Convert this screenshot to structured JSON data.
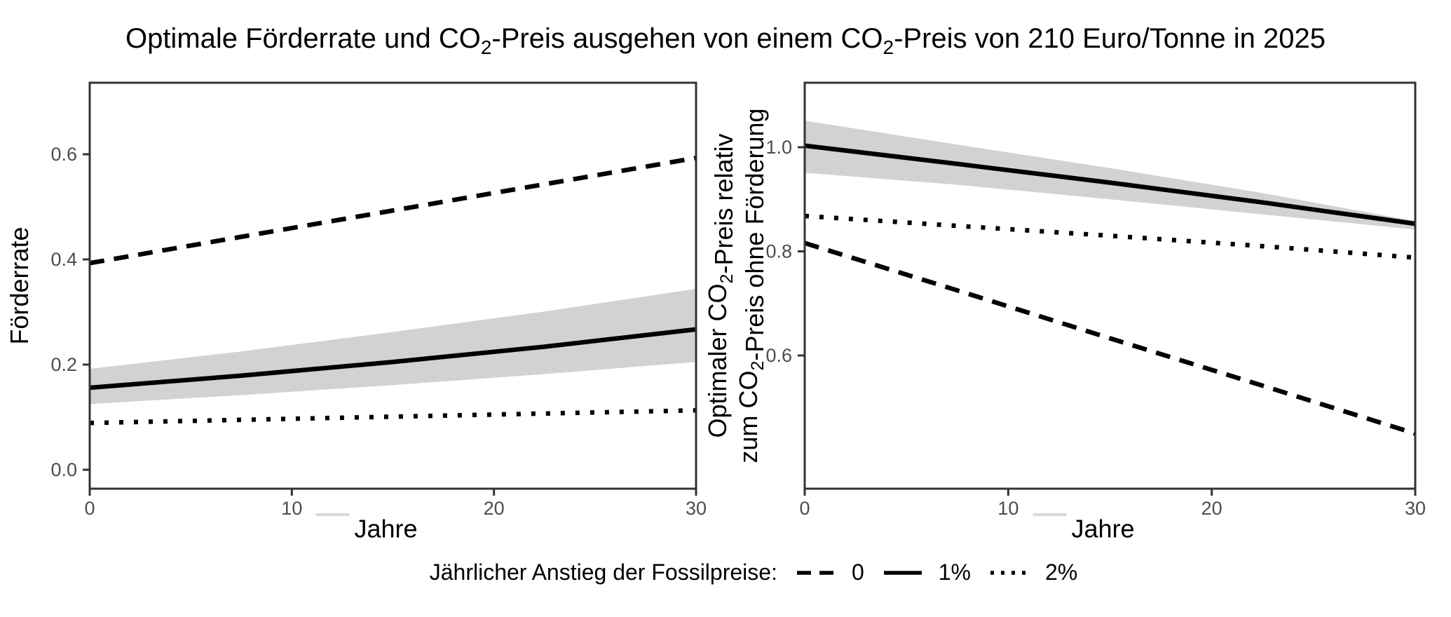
{
  "title": {
    "segments": [
      {
        "t": "Optimale Förderrate und CO"
      },
      {
        "t": "2",
        "sub": true
      },
      {
        "t": "-Preis ausgehen von einem CO"
      },
      {
        "t": "2",
        "sub": true
      },
      {
        "t": "-Preis von 210 Euro/Tonne in 2025"
      }
    ],
    "plain": "Optimale Förderrate und CO2-Preis ausgehen von einem CO2-Preis von 210 Euro/Tonne in 2025"
  },
  "legend": {
    "label": "Jährlicher Anstieg der Fossilpreise:",
    "items": [
      {
        "style": "dashed",
        "label": "0"
      },
      {
        "style": "solid",
        "label": "1%"
      },
      {
        "style": "dotted",
        "label": "2%"
      }
    ]
  },
  "colors": {
    "line": "#000000",
    "ribbon": "#d2d2d2",
    "axis": "#333333",
    "tick_label": "#4d4d4d",
    "ghost_dash": "#d9d9d9",
    "background": "#ffffff"
  },
  "chart_data": [
    {
      "type": "line",
      "panel": "left",
      "xlabel": "Jahre",
      "ylabel": "Förderrate",
      "ylabel_lines": [
        [
          {
            "t": "Förderrate"
          }
        ]
      ],
      "x": [
        0,
        7.5,
        15,
        22.5,
        30
      ],
      "xticks": [
        0,
        10,
        20,
        30
      ],
      "yticks": [
        "0.0",
        "0.2",
        "0.4",
        "0.6"
      ],
      "xlim": [
        0,
        30
      ],
      "ylim": [
        -0.036,
        0.736
      ],
      "grid": false,
      "series": [
        {
          "name": "0",
          "style": "dashed",
          "values": [
            0.393,
            0.443,
            0.493,
            0.543,
            0.593
          ]
        },
        {
          "name": "1%",
          "style": "solid",
          "values": [
            0.156,
            0.179,
            0.205,
            0.234,
            0.267
          ],
          "ribbon_upper": [
            0.192,
            0.225,
            0.262,
            0.301,
            0.344
          ],
          "ribbon_lower": [
            0.125,
            0.142,
            0.161,
            0.182,
            0.205
          ]
        },
        {
          "name": "2%",
          "style": "dotted",
          "values": [
            0.089,
            0.095,
            0.101,
            0.107,
            0.113
          ]
        }
      ]
    },
    {
      "type": "line",
      "panel": "right",
      "xlabel": "Jahre",
      "ylabel": "Optimaler CO2-Preis relativ zum CO2-Preis ohne Förderung",
      "ylabel_lines": [
        [
          {
            "t": "Optimaler CO"
          },
          {
            "t": "2",
            "sub": true
          },
          {
            "t": "-Preis relativ"
          }
        ],
        [
          {
            "t": "zum CO"
          },
          {
            "t": "2",
            "sub": true
          },
          {
            "t": "-Preis ohne Förderung"
          }
        ]
      ],
      "x": [
        0,
        7.5,
        15,
        22.5,
        30
      ],
      "xticks": [
        0,
        10,
        20,
        30
      ],
      "yticks": [
        "0.6",
        "0.8",
        "1.0"
      ],
      "xlim": [
        0,
        30
      ],
      "ylim": [
        0.344,
        1.124
      ],
      "grid": false,
      "series": [
        {
          "name": "0",
          "style": "dashed",
          "values": [
            0.816,
            0.725,
            0.633,
            0.542,
            0.45
          ]
        },
        {
          "name": "1%",
          "style": "solid",
          "values": [
            1.003,
            0.968,
            0.932,
            0.894,
            0.853
          ],
          "ribbon_upper": [
            1.051,
            1.005,
            0.96,
            0.912,
            0.858
          ],
          "ribbon_lower": [
            0.951,
            0.928,
            0.9,
            0.871,
            0.842
          ]
        },
        {
          "name": "2%",
          "style": "dotted",
          "values": [
            0.868,
            0.849,
            0.83,
            0.81,
            0.788
          ]
        }
      ]
    }
  ]
}
